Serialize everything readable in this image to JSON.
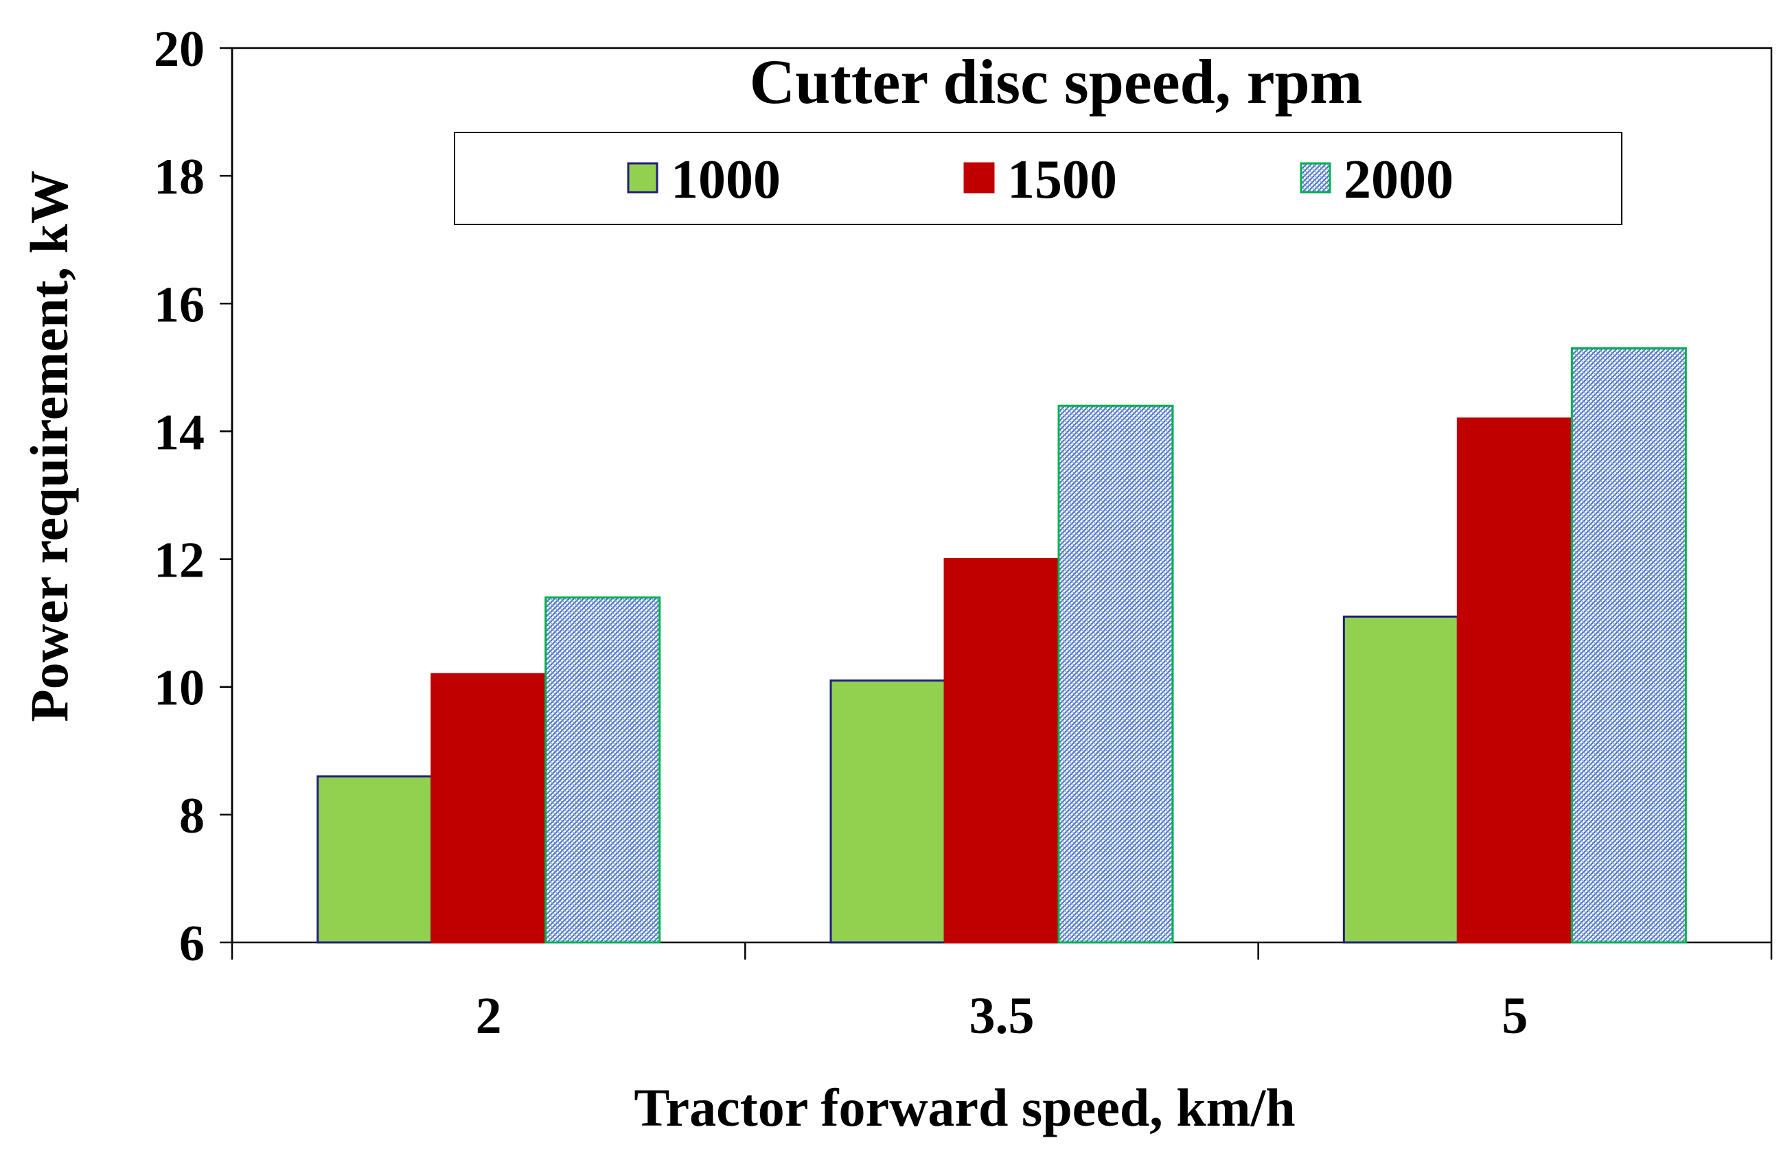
{
  "chart_data": {
    "type": "bar",
    "title": "Cutter disc speed, rpm",
    "xlabel": "Tractor forward speed, km/h",
    "ylabel": "Power requirement, kW",
    "categories": [
      "2",
      "3.5",
      "5"
    ],
    "ylim": [
      6,
      20
    ],
    "yticks": [
      6,
      8,
      10,
      12,
      14,
      16,
      18,
      20
    ],
    "grid": false,
    "legend_position": "top-center",
    "series": [
      {
        "name": "1000",
        "values": [
          8.6,
          10.1,
          11.1
        ],
        "color": "#92d050",
        "stroke": "#1f1f7a",
        "pattern": "solid"
      },
      {
        "name": "1500",
        "values": [
          10.2,
          12.0,
          14.2
        ],
        "color": "#c00000",
        "stroke": "#c00000",
        "pattern": "solid"
      },
      {
        "name": "2000",
        "values": [
          11.4,
          14.4,
          15.3
        ],
        "color": "#8eaadb",
        "stroke": "#00b050",
        "pattern": "hatch"
      }
    ]
  }
}
